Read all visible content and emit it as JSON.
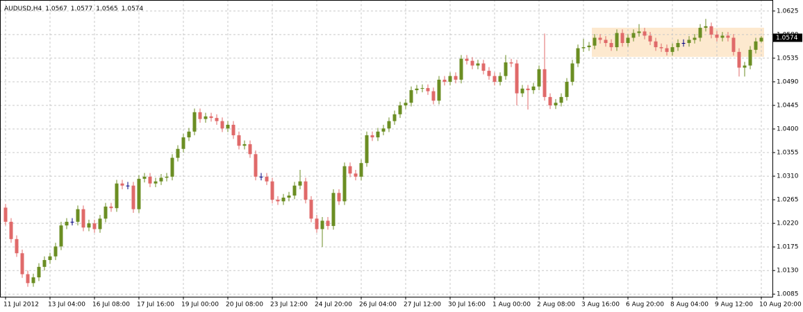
{
  "chart_data": {
    "type": "candlestick",
    "title": "AUDUSD,H4",
    "open": [
      1.025,
      1.0223,
      1.019,
      1.0163,
      1.0123,
      1.0106,
      1.0117,
      1.0137,
      1.015,
      1.0157,
      1.0176,
      1.0216,
      1.0223,
      1.0223,
      1.0247,
      1.0212,
      1.022,
      1.0209,
      1.0229,
      1.0252,
      1.0249,
      1.0296,
      1.0292,
      1.0292,
      1.0247,
      1.0305,
      1.0309,
      1.0296,
      1.03,
      1.0307,
      1.0309,
      1.0345,
      1.0362,
      1.0384,
      1.0395,
      1.0432,
      1.0419,
      1.0424,
      1.0421,
      1.0415,
      1.0401,
      1.0408,
      1.0388,
      1.0368,
      1.0371,
      1.0352,
      1.0309,
      1.0309,
      1.03,
      1.0265,
      1.0262,
      1.0269,
      1.0273,
      1.0292,
      1.03,
      1.0265,
      1.0229,
      1.0209,
      1.0225,
      1.0215,
      1.0278,
      1.0262,
      1.0329,
      1.0315,
      1.0309,
      1.0335,
      1.0388,
      1.0384,
      1.0395,
      1.0401,
      1.0415,
      1.0428,
      1.0445,
      1.045,
      1.0474,
      1.0477,
      1.0478,
      1.0472,
      1.0454,
      1.0494,
      1.049,
      1.0501,
      1.0494,
      1.0534,
      1.053,
      1.0521,
      1.0525,
      1.0511,
      1.0501,
      1.049,
      1.0501,
      1.0527,
      1.0525,
      1.0468,
      1.0477,
      1.0474,
      1.0481,
      1.0514,
      1.0461,
      1.0445,
      1.045,
      1.0461,
      1.049,
      1.0525,
      1.0554,
      1.0556,
      1.0559,
      1.0574,
      1.057,
      1.0564,
      1.0556,
      1.0583,
      1.0564,
      1.0574,
      1.0583,
      1.0586,
      1.0578,
      1.0567,
      1.0556,
      1.0554,
      1.0547,
      1.0556,
      1.0564,
      1.0564,
      1.057,
      1.0574,
      1.0593,
      1.0596,
      1.058,
      1.0574,
      1.0578,
      1.0574,
      1.0547,
      1.0517,
      1.0521,
      1.0551,
      1.0567
    ],
    "high": [
      1.0257,
      1.023,
      1.0197,
      1.017,
      1.013,
      1.0124,
      1.0144,
      1.0157,
      1.0164,
      1.0183,
      1.0223,
      1.023,
      1.023,
      1.0254,
      1.0254,
      1.0227,
      1.0227,
      1.0236,
      1.0259,
      1.0259,
      1.0303,
      1.0303,
      1.0299,
      1.0299,
      1.0312,
      1.0316,
      1.0316,
      1.0307,
      1.0314,
      1.0316,
      1.0352,
      1.0369,
      1.0391,
      1.0402,
      1.0439,
      1.0439,
      1.0431,
      1.0431,
      1.0428,
      1.0422,
      1.0415,
      1.0415,
      1.0395,
      1.0378,
      1.0378,
      1.0359,
      1.0316,
      1.0316,
      1.0307,
      1.0272,
      1.0276,
      1.028,
      1.0299,
      1.0322,
      1.0307,
      1.0272,
      1.0236,
      1.0232,
      1.0232,
      1.0285,
      1.0285,
      1.0336,
      1.0336,
      1.0322,
      1.0342,
      1.0395,
      1.0395,
      1.0402,
      1.0408,
      1.0422,
      1.0435,
      1.0452,
      1.0457,
      1.0481,
      1.0484,
      1.0485,
      1.0485,
      1.0479,
      1.0501,
      1.0501,
      1.0508,
      1.0508,
      1.0541,
      1.0541,
      1.0537,
      1.0532,
      1.0532,
      1.0518,
      1.0508,
      1.0508,
      1.0541,
      1.0534,
      1.0532,
      1.0484,
      1.0484,
      1.0488,
      1.0521,
      1.0582,
      1.0468,
      1.0457,
      1.0468,
      1.0497,
      1.0532,
      1.0561,
      1.0572,
      1.0566,
      1.0581,
      1.0581,
      1.0577,
      1.0571,
      1.059,
      1.059,
      1.0581,
      1.059,
      1.06,
      1.0593,
      1.0585,
      1.0574,
      1.0563,
      1.0561,
      1.0563,
      1.0571,
      1.0571,
      1.0577,
      1.0581,
      1.06,
      1.061,
      1.0603,
      1.0587,
      1.0585,
      1.0585,
      1.0581,
      1.0554,
      1.0528,
      1.0558,
      1.0574,
      1.0577
    ],
    "low": [
      1.0216,
      1.0183,
      1.0156,
      1.0116,
      1.0099,
      1.0099,
      1.011,
      1.013,
      1.0143,
      1.015,
      1.0169,
      1.0209,
      1.0216,
      1.0216,
      1.0205,
      1.0205,
      1.0202,
      1.0202,
      1.0222,
      1.0242,
      1.0242,
      1.0285,
      1.0285,
      1.024,
      1.024,
      1.0298,
      1.0289,
      1.0289,
      1.0293,
      1.03,
      1.0302,
      1.0338,
      1.0355,
      1.0377,
      1.0388,
      1.0412,
      1.0412,
      1.0414,
      1.0408,
      1.0394,
      1.0394,
      1.0381,
      1.0361,
      1.0361,
      1.0345,
      1.0302,
      1.0302,
      1.0293,
      1.0258,
      1.0255,
      1.0255,
      1.0262,
      1.0266,
      1.0285,
      1.0258,
      1.0222,
      1.0202,
      1.0175,
      1.0208,
      1.0208,
      1.0255,
      1.0255,
      1.0308,
      1.0302,
      1.0302,
      1.0328,
      1.0377,
      1.0377,
      1.0388,
      1.0394,
      1.0408,
      1.0421,
      1.0438,
      1.0443,
      1.0467,
      1.047,
      1.0465,
      1.0447,
      1.0447,
      1.0483,
      1.0483,
      1.0487,
      1.0487,
      1.0523,
      1.0514,
      1.0514,
      1.0504,
      1.0494,
      1.0483,
      1.0483,
      1.0494,
      1.0518,
      1.0445,
      1.0461,
      1.0437,
      1.0467,
      1.0474,
      1.0454,
      1.0438,
      1.0438,
      1.0443,
      1.0454,
      1.0483,
      1.0518,
      1.0547,
      1.0549,
      1.0552,
      1.0563,
      1.0557,
      1.0549,
      1.0549,
      1.0557,
      1.0557,
      1.0567,
      1.0576,
      1.0571,
      1.056,
      1.0549,
      1.0547,
      1.054,
      1.054,
      1.0549,
      1.0557,
      1.0557,
      1.0563,
      1.0567,
      1.0586,
      1.0573,
      1.0567,
      1.0567,
      1.0567,
      1.054,
      1.05,
      1.05,
      1.0514,
      1.0544,
      1.0565
    ],
    "close": [
      1.0223,
      1.019,
      1.0163,
      1.0123,
      1.0106,
      1.0117,
      1.0137,
      1.015,
      1.0157,
      1.0176,
      1.0216,
      1.0223,
      1.0223,
      1.0247,
      1.0212,
      1.022,
      1.0209,
      1.0229,
      1.0252,
      1.0249,
      1.0296,
      1.0292,
      1.0292,
      1.0247,
      1.0305,
      1.0309,
      1.0296,
      1.03,
      1.0307,
      1.0309,
      1.0345,
      1.0362,
      1.0384,
      1.0395,
      1.0432,
      1.0419,
      1.0424,
      1.0421,
      1.0415,
      1.0401,
      1.0408,
      1.0388,
      1.0368,
      1.0371,
      1.0352,
      1.0309,
      1.0309,
      1.03,
      1.0265,
      1.0262,
      1.0269,
      1.0273,
      1.0292,
      1.03,
      1.0265,
      1.0229,
      1.0209,
      1.0225,
      1.0215,
      1.0278,
      1.0262,
      1.0329,
      1.0315,
      1.0309,
      1.0335,
      1.0388,
      1.0384,
      1.0395,
      1.0401,
      1.0415,
      1.0428,
      1.0445,
      1.045,
      1.0474,
      1.0477,
      1.0478,
      1.0472,
      1.0454,
      1.0494,
      1.049,
      1.0501,
      1.0494,
      1.0534,
      1.053,
      1.0521,
      1.0525,
      1.0511,
      1.0501,
      1.049,
      1.0501,
      1.0527,
      1.0525,
      1.0468,
      1.0477,
      1.0474,
      1.0481,
      1.0514,
      1.0461,
      1.0445,
      1.045,
      1.0461,
      1.049,
      1.0525,
      1.0554,
      1.0556,
      1.0559,
      1.0574,
      1.057,
      1.0564,
      1.0556,
      1.0583,
      1.0564,
      1.0574,
      1.0583,
      1.0586,
      1.0578,
      1.0567,
      1.0556,
      1.0554,
      1.0547,
      1.0556,
      1.0564,
      1.0564,
      1.057,
      1.0574,
      1.0593,
      1.0596,
      1.058,
      1.0574,
      1.0578,
      1.0574,
      1.0547,
      1.0517,
      1.0521,
      1.0551,
      1.0567,
      1.0574
    ],
    "up_color": "#6b8e23",
    "down_color": "#e06a6a",
    "doji_color": "#000080",
    "xlim": [
      -1,
      138
    ],
    "xticks": [
      {
        "value": 0,
        "label": "11 Jul 2012"
      },
      {
        "value": 8,
        "label": "13 Jul 04:00"
      },
      {
        "value": 16,
        "label": "16 Jul 08:00"
      },
      {
        "value": 24,
        "label": "17 Jul 16:00"
      },
      {
        "value": 32,
        "label": "19 Jul 00:00"
      },
      {
        "value": 40,
        "label": "20 Jul 08:00"
      },
      {
        "value": 48,
        "label": "23 Jul 12:00"
      },
      {
        "value": 56,
        "label": "24 Jul 20:00"
      },
      {
        "value": 64,
        "label": "26 Jul 04:00"
      },
      {
        "value": 72,
        "label": "27 Jul 12:00"
      },
      {
        "value": 80,
        "label": "30 Jul 16:00"
      },
      {
        "value": 88,
        "label": "1 Aug 00:00"
      },
      {
        "value": 96,
        "label": "2 Aug 08:00"
      },
      {
        "value": 104,
        "label": "3 Aug 16:00"
      },
      {
        "value": 112,
        "label": "6 Aug 20:00"
      },
      {
        "value": 120,
        "label": "8 Aug 04:00"
      },
      {
        "value": 128,
        "label": "9 Aug 12:00"
      },
      {
        "value": 136,
        "label": "10 Aug 20:00"
      }
    ],
    "ylim": [
      1.008,
      1.0646
    ],
    "yticks": [
      1.0085,
      {
        "value": 1.013,
        "label": "1.0130"
      },
      1.0175,
      {
        "value": 1.022,
        "label": "1.0220"
      },
      1.0265,
      {
        "value": 1.031,
        "label": "1.0310"
      },
      1.0355,
      {
        "value": 1.04,
        "label": "1.0400"
      },
      1.0445,
      {
        "value": 1.049,
        "label": "1.0490"
      },
      1.0535,
      {
        "value": 1.058,
        "label": "1.0580"
      },
      1.0625
    ],
    "grid": true
  }
}
